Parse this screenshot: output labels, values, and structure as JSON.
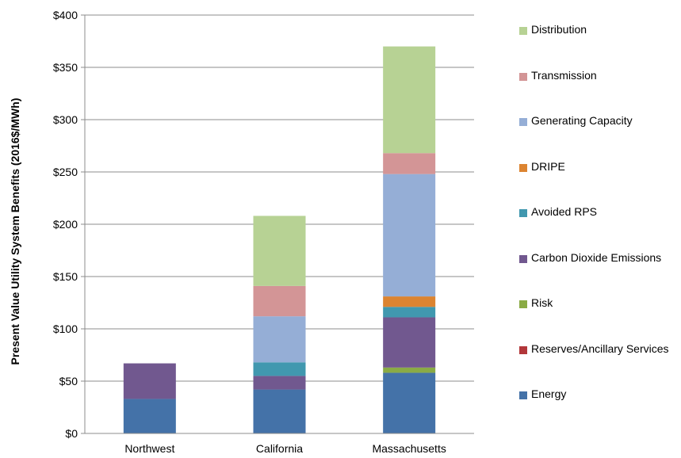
{
  "chart_data": {
    "type": "bar",
    "stacked": true,
    "title": "",
    "xlabel": "",
    "ylabel": "Present Value Utility System Benefits (2016$/MWh)",
    "ylim": [
      0,
      400
    ],
    "yticks": [
      "$0",
      "$50",
      "$100",
      "$150",
      "$200",
      "$250",
      "$300",
      "$350",
      "$400"
    ],
    "grid": true,
    "legend_position": "right",
    "categories": [
      "Northwest",
      "California",
      "Massachusetts"
    ],
    "series": [
      {
        "name": "Energy",
        "color": "#4472a8",
        "values": [
          33,
          42,
          58
        ]
      },
      {
        "name": "Reserves/Ancillary Services",
        "color": "#b2373a",
        "values": [
          0,
          0,
          0
        ]
      },
      {
        "name": "Risk",
        "color": "#8aab45",
        "values": [
          0,
          0,
          5
        ]
      },
      {
        "name": "Carbon Dioxide Emissions",
        "color": "#71588f",
        "values": [
          34,
          13,
          48
        ]
      },
      {
        "name": "Avoided RPS",
        "color": "#4198af",
        "values": [
          0,
          13,
          10
        ]
      },
      {
        "name": "DRIPE",
        "color": "#dc8431",
        "values": [
          0,
          0,
          10
        ]
      },
      {
        "name": "Generating Capacity",
        "color": "#95aed6",
        "values": [
          0,
          44,
          117
        ]
      },
      {
        "name": "Transmission",
        "color": "#d39596",
        "values": [
          0,
          29,
          20
        ]
      },
      {
        "name": "Distribution",
        "color": "#b7d294",
        "values": [
          0,
          67,
          102
        ]
      }
    ]
  }
}
